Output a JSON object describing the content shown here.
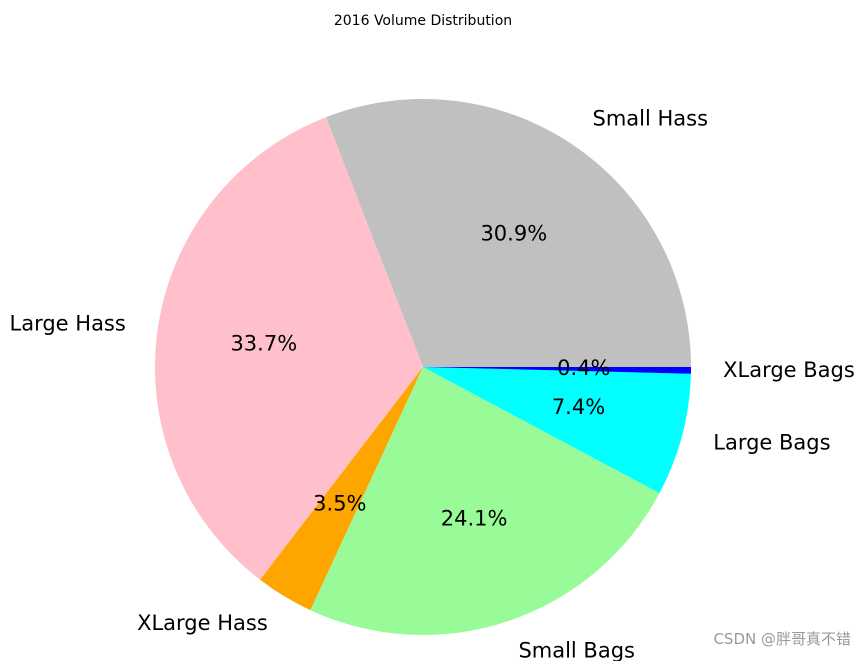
{
  "chart_data": {
    "type": "pie",
    "title": "2016 Volume Distribution",
    "categories": [
      "Small Hass",
      "Large Hass",
      "XLarge Hass",
      "Small Bags",
      "Large Bags",
      "XLarge Bags"
    ],
    "values": [
      30.9,
      33.7,
      3.5,
      24.1,
      7.4,
      0.4
    ],
    "percent_labels": [
      "30.9%",
      "33.7%",
      "3.5%",
      "24.1%",
      "7.4%",
      "0.4%"
    ],
    "colors": [
      "#c0c0c0",
      "#ffc0cb",
      "#ffa500",
      "#98fb98",
      "#00ffff",
      "#0000ff"
    ],
    "start_angle_deg": 0,
    "direction": "counterclockwise"
  },
  "watermark": "CSDN @胖哥真不错"
}
